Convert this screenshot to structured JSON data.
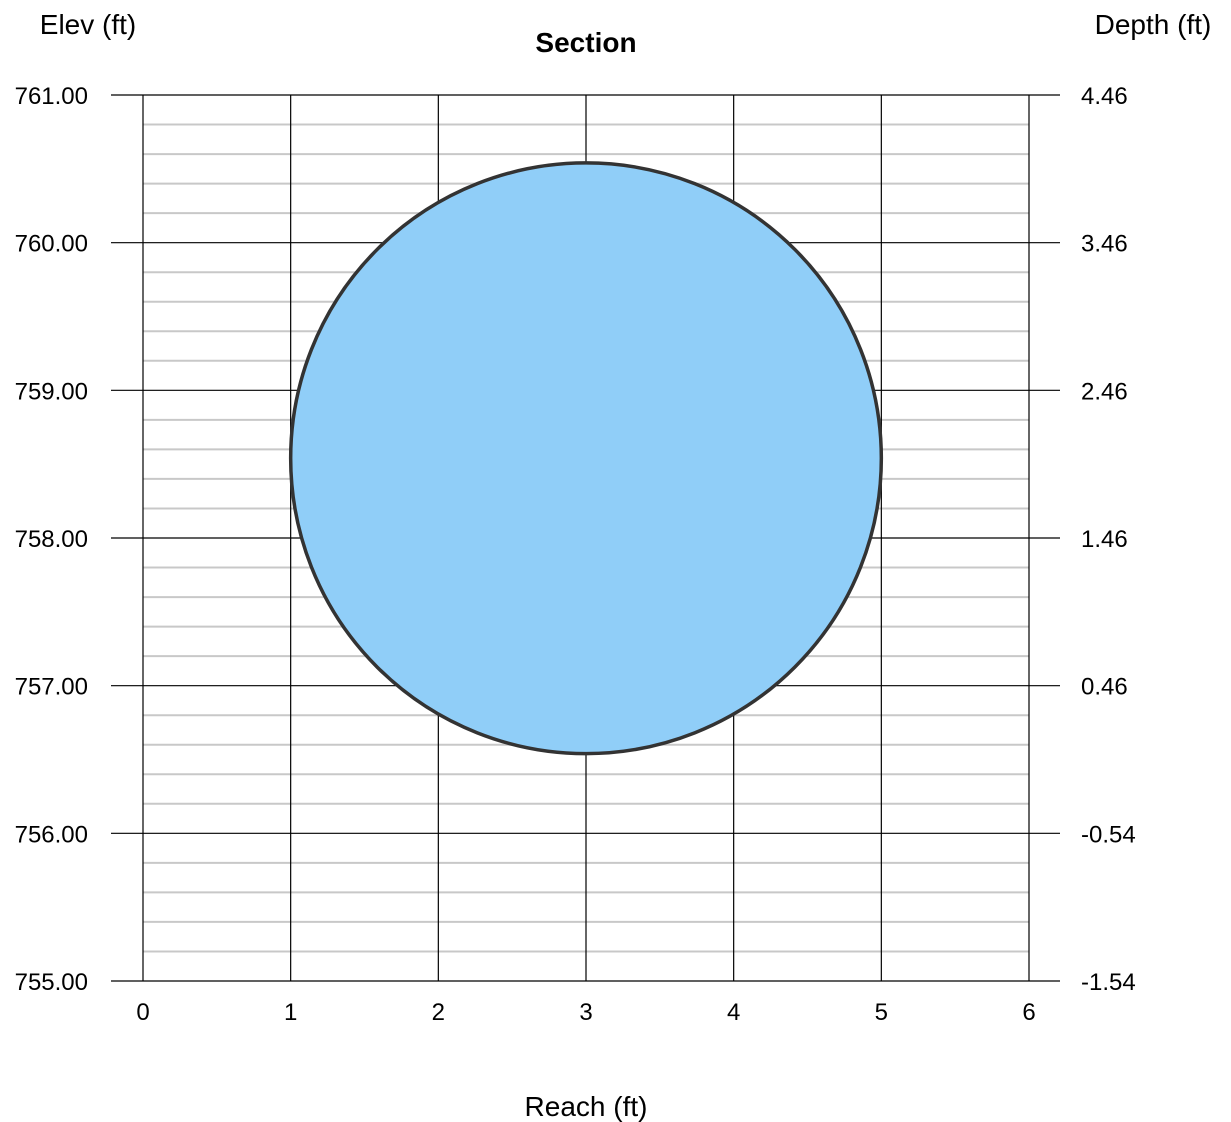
{
  "chart_data": {
    "type": "area",
    "title": "Section",
    "xlabel": "Reach (ft)",
    "ylabel_left": "Elev (ft)",
    "ylabel_right": "Depth (ft)",
    "xlim": [
      0,
      6
    ],
    "ylim": [
      755.0,
      761.0
    ],
    "depth_lim": [
      -1.54,
      4.46
    ],
    "x_ticks": [
      "0",
      "1",
      "2",
      "3",
      "4",
      "5",
      "6"
    ],
    "y_ticks_left": [
      "755.00",
      "756.00",
      "757.00",
      "758.00",
      "759.00",
      "760.00",
      "761.00"
    ],
    "y_ticks_right": [
      "-1.54",
      "-0.54",
      "0.46",
      "1.46",
      "2.46",
      "3.46",
      "4.46"
    ],
    "minor_y_step": 0.2,
    "grid": true,
    "section": {
      "shape": "circular",
      "center_x": 3.0,
      "invert_elev": 756.54,
      "crown_elev": 760.54,
      "diameter_ft": 4.0,
      "fill_color": "#90CEF8",
      "outline_color": "#333333"
    }
  }
}
